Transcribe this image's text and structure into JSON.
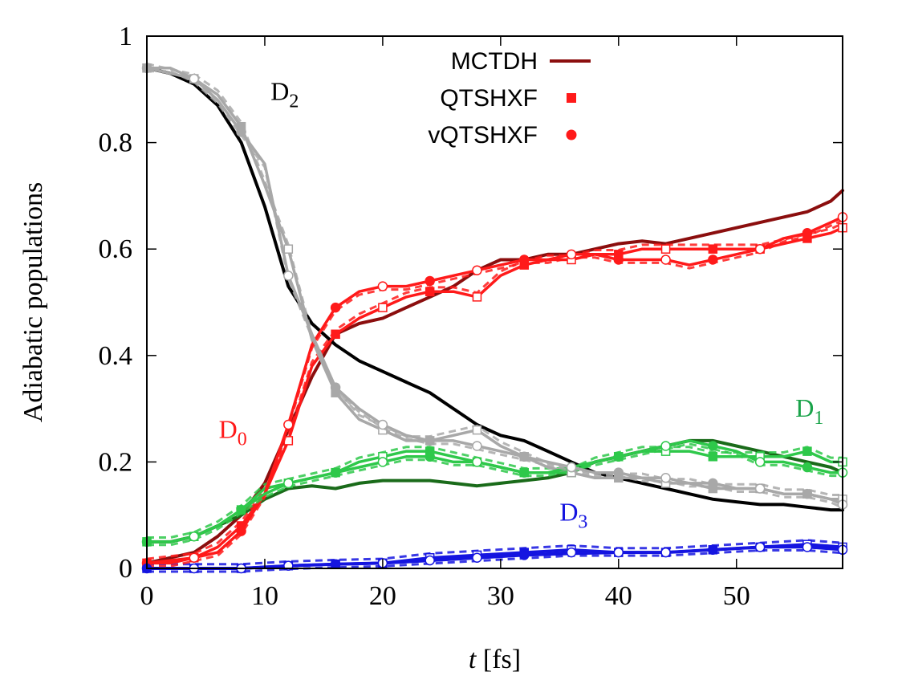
{
  "chart_data": {
    "type": "line",
    "xlabel_italic": "t",
    "xlabel_rest": " [fs]",
    "ylabel": "Adiabatic populations",
    "xlim": [
      0,
      59
    ],
    "ylim": [
      0,
      1
    ],
    "xticks": [
      "0",
      "10",
      "20",
      "30",
      "40",
      "50"
    ],
    "xtick_values": [
      0,
      10,
      20,
      30,
      40,
      50
    ],
    "yticks": [
      "0",
      "0.2",
      "0.4",
      "0.6",
      "0.8",
      "1"
    ],
    "ytick_values": [
      0,
      0.2,
      0.4,
      0.6,
      0.8,
      1
    ],
    "grid": false,
    "legend_position": "top-center",
    "legend": [
      {
        "label": "MCTDH",
        "marker": "line",
        "color": "#8b0e0e"
      },
      {
        "label": "QTSHXF",
        "marker": "square",
        "color": "#ff1a1a"
      },
      {
        "label": "vQTSHXF",
        "marker": "circle",
        "color": "#ff1a1a"
      }
    ],
    "annotations": [
      {
        "main": "D",
        "sub": "2",
        "x": 10.5,
        "y": 0.88,
        "color": "#000000"
      },
      {
        "main": "D",
        "sub": "0",
        "x": 6.1,
        "y": 0.245,
        "color": "#ff1a1a"
      },
      {
        "main": "D",
        "sub": "1",
        "x": 55.0,
        "y": 0.285,
        "color": "#1aa34a"
      },
      {
        "main": "D",
        "sub": "3",
        "x": 35.0,
        "y": 0.09,
        "color": "#1515e0"
      }
    ],
    "colors": {
      "mctdh_d0": "#8b0e0e",
      "mctdh_d1": "#1a6b1a",
      "mctdh_d2": "#000000",
      "mctdh_d3": "#1515e0",
      "qtsh_d0": "#ff1a1a",
      "qtsh_d1": "#2ec84a",
      "qtsh_d2": "#a8a8a8",
      "qtsh_d3": "#1515e0"
    },
    "series": [
      {
        "name": "MCTDH D0",
        "state": "D0",
        "method": "MCTDH",
        "color": "#8b0e0e",
        "x": [
          0,
          2,
          4,
          6,
          8,
          10,
          12,
          14,
          16,
          18,
          20,
          22,
          24,
          26,
          28,
          30,
          32,
          34,
          36,
          38,
          40,
          42,
          44,
          46,
          48,
          50,
          52,
          54,
          56,
          58,
          59
        ],
        "y": [
          0.01,
          0.02,
          0.03,
          0.06,
          0.1,
          0.16,
          0.26,
          0.36,
          0.44,
          0.46,
          0.47,
          0.49,
          0.51,
          0.53,
          0.56,
          0.58,
          0.58,
          0.59,
          0.59,
          0.6,
          0.61,
          0.615,
          0.61,
          0.62,
          0.63,
          0.64,
          0.65,
          0.66,
          0.67,
          0.69,
          0.71
        ]
      },
      {
        "name": "MCTDH D1",
        "state": "D1",
        "method": "MCTDH",
        "color": "#1a6b1a",
        "x": [
          0,
          2,
          4,
          6,
          8,
          10,
          12,
          14,
          16,
          18,
          20,
          22,
          24,
          26,
          28,
          30,
          32,
          34,
          36,
          38,
          40,
          42,
          44,
          46,
          48,
          50,
          52,
          54,
          56,
          58,
          59
        ],
        "y": [
          0.05,
          0.05,
          0.06,
          0.08,
          0.1,
          0.13,
          0.15,
          0.155,
          0.15,
          0.16,
          0.165,
          0.165,
          0.165,
          0.16,
          0.155,
          0.16,
          0.165,
          0.17,
          0.18,
          0.2,
          0.21,
          0.22,
          0.23,
          0.24,
          0.24,
          0.23,
          0.22,
          0.21,
          0.2,
          0.19,
          0.18
        ]
      },
      {
        "name": "MCTDH D2",
        "state": "D2",
        "method": "MCTDH",
        "color": "#000000",
        "x": [
          0,
          2,
          4,
          6,
          8,
          10,
          12,
          14,
          16,
          18,
          20,
          22,
          24,
          26,
          28,
          30,
          32,
          34,
          36,
          38,
          40,
          42,
          44,
          46,
          48,
          50,
          52,
          54,
          56,
          58,
          59
        ],
        "y": [
          0.94,
          0.93,
          0.91,
          0.87,
          0.8,
          0.68,
          0.53,
          0.46,
          0.42,
          0.39,
          0.37,
          0.35,
          0.33,
          0.3,
          0.27,
          0.25,
          0.24,
          0.22,
          0.2,
          0.18,
          0.17,
          0.16,
          0.15,
          0.14,
          0.13,
          0.125,
          0.12,
          0.12,
          0.115,
          0.11,
          0.11
        ]
      },
      {
        "name": "MCTDH D3",
        "state": "D3",
        "method": "MCTDH",
        "color": "#1515e0",
        "x": [
          0,
          4,
          8,
          12,
          16,
          20,
          24,
          28,
          32,
          36,
          40,
          44,
          48,
          52,
          56,
          59
        ],
        "y": [
          0,
          0,
          0,
          0.005,
          0.008,
          0.01,
          0.015,
          0.02,
          0.025,
          0.028,
          0.03,
          0.03,
          0.035,
          0.04,
          0.045,
          0.04
        ]
      },
      {
        "name": "QTSHXF D0",
        "state": "D0",
        "method": "QTSHXF",
        "color": "#ff1a1a",
        "x": [
          0,
          2,
          4,
          6,
          8,
          10,
          12,
          14,
          16,
          18,
          20,
          22,
          24,
          26,
          28,
          30,
          32,
          34,
          36,
          38,
          40,
          42,
          44,
          46,
          48,
          50,
          52,
          54,
          56,
          58,
          59
        ],
        "y": [
          0.01,
          0.015,
          0.02,
          0.04,
          0.08,
          0.14,
          0.24,
          0.38,
          0.44,
          0.47,
          0.49,
          0.51,
          0.52,
          0.52,
          0.51,
          0.55,
          0.57,
          0.58,
          0.58,
          0.59,
          0.59,
          0.6,
          0.6,
          0.6,
          0.6,
          0.6,
          0.6,
          0.61,
          0.62,
          0.63,
          0.64
        ]
      },
      {
        "name": "QTSHXF D1",
        "state": "D1",
        "method": "QTSHXF",
        "color": "#2ec84a",
        "x": [
          0,
          2,
          4,
          6,
          8,
          10,
          12,
          14,
          16,
          18,
          20,
          22,
          24,
          26,
          28,
          30,
          32,
          34,
          36,
          38,
          40,
          42,
          44,
          46,
          48,
          50,
          52,
          54,
          56,
          58,
          59
        ],
        "y": [
          0.05,
          0.05,
          0.06,
          0.08,
          0.11,
          0.15,
          0.16,
          0.17,
          0.18,
          0.2,
          0.21,
          0.22,
          0.22,
          0.21,
          0.2,
          0.19,
          0.18,
          0.18,
          0.18,
          0.2,
          0.21,
          0.22,
          0.22,
          0.22,
          0.21,
          0.21,
          0.21,
          0.21,
          0.22,
          0.2,
          0.2
        ]
      },
      {
        "name": "QTSHXF D2",
        "state": "D2",
        "method": "QTSHXF",
        "color": "#a8a8a8",
        "x": [
          0,
          2,
          4,
          6,
          8,
          10,
          12,
          14,
          16,
          18,
          20,
          22,
          24,
          26,
          28,
          30,
          32,
          34,
          36,
          38,
          40,
          42,
          44,
          46,
          48,
          50,
          52,
          54,
          56,
          58,
          59
        ],
        "y": [
          0.94,
          0.93,
          0.92,
          0.89,
          0.83,
          0.72,
          0.6,
          0.43,
          0.33,
          0.28,
          0.26,
          0.24,
          0.24,
          0.25,
          0.26,
          0.23,
          0.21,
          0.19,
          0.18,
          0.17,
          0.17,
          0.17,
          0.16,
          0.16,
          0.15,
          0.15,
          0.15,
          0.14,
          0.14,
          0.13,
          0.13
        ]
      },
      {
        "name": "QTSHXF D3",
        "state": "D3",
        "method": "QTSHXF",
        "color": "#1515e0",
        "x": [
          0,
          4,
          8,
          12,
          16,
          20,
          24,
          28,
          32,
          36,
          40,
          44,
          48,
          52,
          56,
          59
        ],
        "y": [
          0,
          0,
          0,
          0.005,
          0.008,
          0.01,
          0.02,
          0.025,
          0.03,
          0.035,
          0.03,
          0.03,
          0.035,
          0.04,
          0.045,
          0.04
        ]
      },
      {
        "name": "vQTSHXF D0",
        "state": "D0",
        "method": "vQTSHXF",
        "color": "#ff1a1a",
        "x": [
          0,
          2,
          4,
          6,
          8,
          10,
          12,
          14,
          16,
          18,
          20,
          22,
          24,
          26,
          28,
          30,
          32,
          34,
          36,
          38,
          40,
          42,
          44,
          46,
          48,
          50,
          52,
          54,
          56,
          58,
          59
        ],
        "y": [
          0.01,
          0.01,
          0.02,
          0.03,
          0.07,
          0.14,
          0.27,
          0.42,
          0.49,
          0.52,
          0.53,
          0.53,
          0.54,
          0.55,
          0.56,
          0.57,
          0.58,
          0.58,
          0.59,
          0.59,
          0.58,
          0.58,
          0.58,
          0.57,
          0.58,
          0.59,
          0.6,
          0.62,
          0.63,
          0.65,
          0.66
        ]
      },
      {
        "name": "vQTSHXF D1",
        "state": "D1",
        "method": "vQTSHXF",
        "color": "#2ec84a",
        "x": [
          0,
          2,
          4,
          6,
          8,
          10,
          12,
          14,
          16,
          18,
          20,
          22,
          24,
          26,
          28,
          30,
          32,
          34,
          36,
          38,
          40,
          42,
          44,
          46,
          48,
          50,
          52,
          54,
          56,
          58,
          59
        ],
        "y": [
          0.05,
          0.05,
          0.06,
          0.08,
          0.11,
          0.14,
          0.16,
          0.17,
          0.18,
          0.19,
          0.2,
          0.21,
          0.21,
          0.2,
          0.2,
          0.19,
          0.18,
          0.18,
          0.19,
          0.2,
          0.21,
          0.22,
          0.23,
          0.24,
          0.23,
          0.22,
          0.2,
          0.2,
          0.19,
          0.18,
          0.18
        ]
      },
      {
        "name": "vQTSHXF D2",
        "state": "D2",
        "method": "vQTSHXF",
        "color": "#a8a8a8",
        "x": [
          0,
          2,
          4,
          6,
          8,
          10,
          12,
          14,
          16,
          18,
          20,
          22,
          24,
          26,
          28,
          30,
          32,
          34,
          36,
          38,
          40,
          42,
          44,
          46,
          48,
          50,
          52,
          54,
          56,
          58,
          59
        ],
        "y": [
          0.94,
          0.94,
          0.92,
          0.88,
          0.82,
          0.76,
          0.55,
          0.44,
          0.34,
          0.3,
          0.27,
          0.25,
          0.24,
          0.24,
          0.23,
          0.22,
          0.21,
          0.2,
          0.19,
          0.18,
          0.18,
          0.17,
          0.17,
          0.16,
          0.16,
          0.15,
          0.15,
          0.14,
          0.14,
          0.13,
          0.12
        ]
      },
      {
        "name": "vQTSHXF D3",
        "state": "D3",
        "method": "vQTSHXF",
        "color": "#1515e0",
        "x": [
          0,
          4,
          8,
          12,
          16,
          20,
          24,
          28,
          32,
          36,
          40,
          44,
          48,
          52,
          56,
          59
        ],
        "y": [
          0,
          0,
          0,
          0.005,
          0.008,
          0.01,
          0.015,
          0.02,
          0.025,
          0.03,
          0.03,
          0.03,
          0.035,
          0.04,
          0.04,
          0.035
        ]
      }
    ]
  }
}
